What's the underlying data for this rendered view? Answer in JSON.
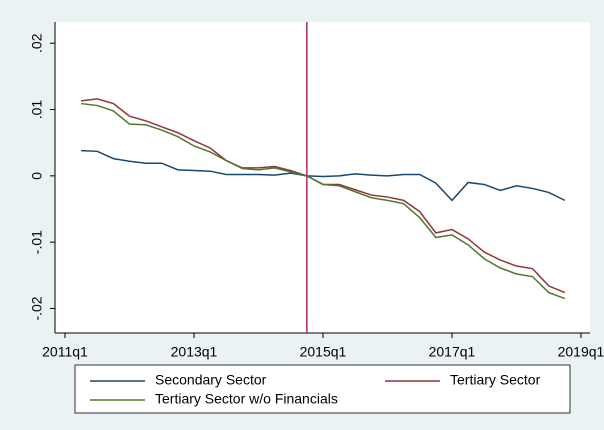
{
  "chart_data": {
    "type": "line",
    "x": [
      2011.25,
      2011.5,
      2011.75,
      2012,
      2012.25,
      2012.5,
      2012.75,
      2013,
      2013.25,
      2013.5,
      2013.75,
      2014,
      2014.25,
      2014.5,
      2014.75,
      2015,
      2015.25,
      2015.5,
      2015.75,
      2016,
      2016.25,
      2016.5,
      2016.75,
      2017,
      2017.25,
      2017.5,
      2017.75,
      2018,
      2018.25,
      2018.5,
      2018.75
    ],
    "series": [
      {
        "name": "Secondary Sector",
        "color": "#1a476f",
        "values": [
          0.0038,
          0.0037,
          0.0026,
          0.0022,
          0.0019,
          0.0019,
          0.0009,
          0.0008,
          0.0007,
          0.0002,
          0.0002,
          0.0002,
          0.0001,
          0.0004,
          0,
          -0.0001,
          0,
          0.0003,
          0.0001,
          0,
          0.0002,
          0.0002,
          -0.0011,
          -0.0037,
          -0.001,
          -0.0013,
          -0.0022,
          -0.0015,
          -0.0019,
          -0.0025,
          -0.0037
        ]
      },
      {
        "name": "Tertiary Sector",
        "color": "#90353b",
        "values": [
          0.0113,
          0.0116,
          0.0109,
          0.009,
          0.0083,
          0.0074,
          0.0065,
          0.0053,
          0.0042,
          0.0023,
          0.0012,
          0.0012,
          0.0014,
          0.0008,
          0,
          -0.0013,
          -0.0013,
          -0.0021,
          -0.0029,
          -0.0032,
          -0.0037,
          -0.0054,
          -0.0086,
          -0.0081,
          -0.0095,
          -0.0115,
          -0.0127,
          -0.0136,
          -0.014,
          -0.0166,
          -0.0176
        ]
      },
      {
        "name": "Tertiary Sector w/o Financials",
        "color": "#55752f",
        "values": [
          0.0109,
          0.0106,
          0.0098,
          0.0078,
          0.0077,
          0.0069,
          0.0059,
          0.0045,
          0.0036,
          0.0023,
          0.0011,
          0.0009,
          0.0012,
          0.0006,
          0,
          -0.0013,
          -0.0015,
          -0.0024,
          -0.0033,
          -0.0037,
          -0.0042,
          -0.0063,
          -0.0093,
          -0.0089,
          -0.0104,
          -0.0125,
          -0.0139,
          -0.0148,
          -0.0152,
          -0.0176,
          -0.0185
        ]
      }
    ],
    "xlim": [
      2010.845,
      2019.14
    ],
    "xticks": [
      {
        "value": 2011,
        "label": "2011q1"
      },
      {
        "value": 2013,
        "label": "2013q1"
      },
      {
        "value": 2015,
        "label": "2015q1"
      },
      {
        "value": 2017,
        "label": "2017q1"
      },
      {
        "value": 2019,
        "label": "2019q1"
      }
    ],
    "ylim": [
      -0.0237,
      0.0232
    ],
    "yticks": [
      {
        "value": -0.02,
        "label": "-.02"
      },
      {
        "value": -0.01,
        "label": "-.01"
      },
      0,
      {
        "value": 0.01,
        "label": ".01"
      },
      {
        "value": 0.02,
        "label": ".02"
      }
    ],
    "vline": {
      "value": 2014.75,
      "color": "#b0275a"
    },
    "grid": false,
    "legend": "bottom"
  }
}
